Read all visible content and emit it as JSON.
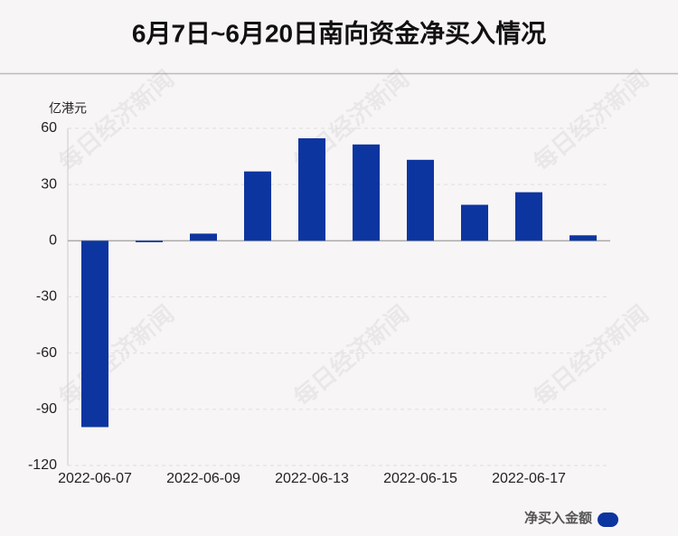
{
  "chart_data": {
    "type": "bar",
    "title": "6月7日~6月20日南向资金净买入情况",
    "y_label": "亿港元",
    "categories": [
      "2022-06-07",
      null,
      "2022-06-09",
      null,
      "2022-06-13",
      null,
      "2022-06-15",
      null,
      "2022-06-17",
      null
    ],
    "series": [
      {
        "name": "净买入金额",
        "color": "#0d35a0",
        "values": [
          -99.5,
          -0.8,
          3.8,
          37.0,
          54.7,
          51.4,
          43.2,
          19.2,
          25.9,
          2.9
        ]
      }
    ],
    "ylim": [
      -120,
      60
    ],
    "yticks": [
      60,
      30,
      0,
      -30,
      -60,
      -90,
      -120
    ],
    "grid": true,
    "legend": "bottom-right",
    "watermark": "每日经济新闻"
  }
}
